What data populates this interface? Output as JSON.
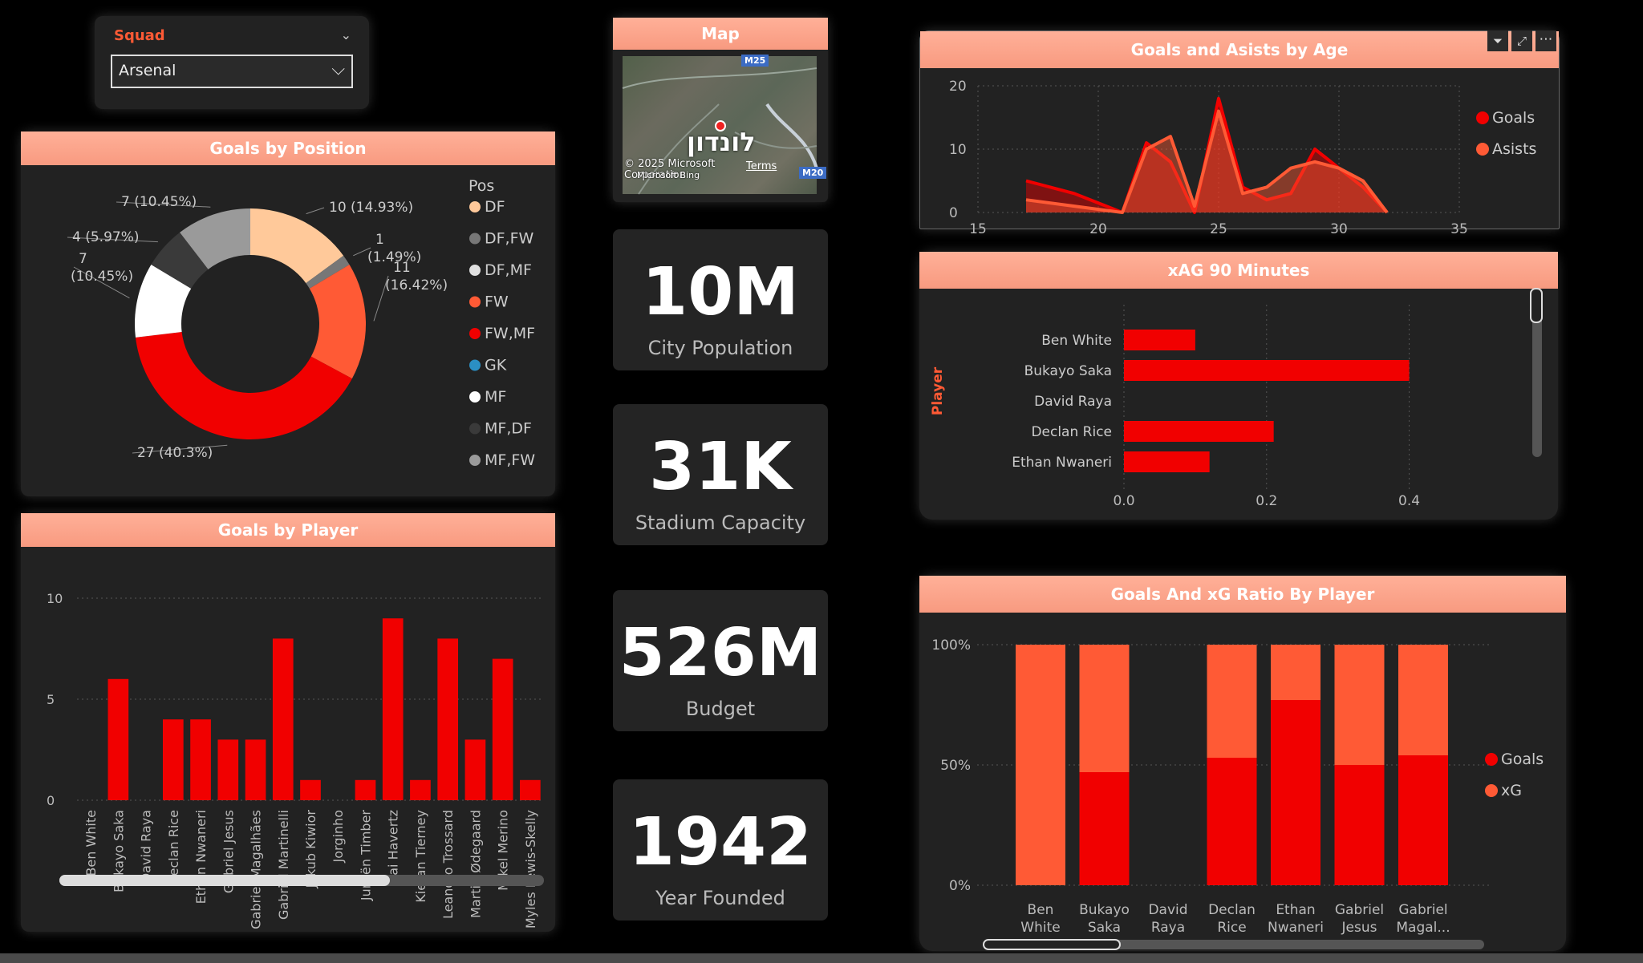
{
  "slicer": {
    "title": "Squad",
    "selected": "Arsenal"
  },
  "map": {
    "title": "Map",
    "city_label": "לונדון",
    "road_top": "M25",
    "road_right": "M20",
    "copyright": "© 2025 Microsoft Corporation",
    "bing": "Microsoft Bing",
    "terms": "Terms"
  },
  "kpis": [
    {
      "value": "10M",
      "label": "City Population"
    },
    {
      "value": "31K",
      "label": "Stadium Capacity"
    },
    {
      "value": "526M",
      "label": "Budget"
    },
    {
      "value": "1942",
      "label": "Year Founded"
    }
  ],
  "chart_data": [
    {
      "id": "goals-by-position",
      "type": "pie",
      "title": "Goals by Position",
      "legend_title": "Pos",
      "legend": [
        "DF",
        "DF,FW",
        "DF,MF",
        "FW",
        "FW,MF",
        "GK",
        "MF",
        "MF,DF",
        "MF,FW"
      ],
      "legend_colors": [
        "#ffc99a",
        "#777777",
        "#e0e0e0",
        "#ff5a35",
        "#f10000",
        "#2b8fc4",
        "#ffffff",
        "#3a3a3a",
        "#9a9a9a"
      ],
      "slices": [
        {
          "category": "DF",
          "value": 10,
          "label": "10 (14.93%)",
          "color": "#ffc99a"
        },
        {
          "category": "DF,FW",
          "value": 1,
          "label": "1 (1.49%)",
          "color": "#777777"
        },
        {
          "category": "FW",
          "value": 11,
          "label": "11 (16.42%)",
          "color": "#ff5a35"
        },
        {
          "category": "FW,MF",
          "value": 27,
          "label": "27 (40.3%)",
          "color": "#f10000"
        },
        {
          "category": "MF",
          "value": 7,
          "label": "7 (10.45%)",
          "color": "#ffffff"
        },
        {
          "category": "MF,DF",
          "value": 4,
          "label": "4 (5.97%)",
          "color": "#3a3a3a"
        },
        {
          "category": "MF,FW",
          "value": 7,
          "label": "7 (10.45%)",
          "color": "#9a9a9a"
        }
      ]
    },
    {
      "id": "goals-by-player",
      "type": "bar",
      "title": "Goals by Player",
      "categories": [
        "Ben White",
        "Bukayo Saka",
        "David Raya",
        "Declan Rice",
        "Ethan Nwaneri",
        "Gabriel Jesus",
        "Gabriel Magalhães",
        "Gabriel Martinelli",
        "Jakub Kiwior",
        "Jorginho",
        "Jurriën Timber",
        "Kai Havertz",
        "Kieran Tierney",
        "Leandro Trossard",
        "Martin Ødegaard",
        "Mikel Merino",
        "Myles Lewis-Skelly"
      ],
      "values": [
        0,
        6,
        0,
        4,
        4,
        3,
        3,
        8,
        1,
        0,
        1,
        9,
        1,
        8,
        3,
        7,
        1
      ],
      "ylim": [
        0,
        10
      ],
      "yticks": [
        0,
        5,
        10
      ],
      "color": "#f10000"
    },
    {
      "id": "goals-assists-by-age",
      "type": "area",
      "title": "Goals and Asists by Age",
      "xlim": [
        15,
        35
      ],
      "xticks": [
        15,
        20,
        25,
        30,
        35
      ],
      "ylim": [
        0,
        20
      ],
      "yticks": [
        0,
        10,
        20
      ],
      "series": [
        {
          "name": "Goals",
          "color": "#f10000",
          "points": [
            [
              17,
              5
            ],
            [
              19,
              3
            ],
            [
              21,
              0
            ],
            [
              22,
              11
            ],
            [
              23,
              8
            ],
            [
              24,
              0
            ],
            [
              25,
              18
            ],
            [
              26,
              4
            ],
            [
              27,
              2
            ],
            [
              28,
              3
            ],
            [
              29,
              10
            ],
            [
              30,
              7
            ],
            [
              31,
              4
            ],
            [
              32,
              0
            ]
          ]
        },
        {
          "name": "Asists",
          "color": "#ff5a35",
          "points": [
            [
              17,
              2
            ],
            [
              19,
              1
            ],
            [
              21,
              0
            ],
            [
              22,
              10
            ],
            [
              23,
              12
            ],
            [
              24,
              1
            ],
            [
              25,
              16
            ],
            [
              26,
              3
            ],
            [
              27,
              4
            ],
            [
              28,
              7
            ],
            [
              29,
              8
            ],
            [
              30,
              7
            ],
            [
              31,
              5
            ],
            [
              32,
              0
            ]
          ]
        }
      ]
    },
    {
      "id": "xag-90",
      "type": "bar",
      "orientation": "horizontal",
      "title": "xAG 90 Minutes",
      "ylabel": "Player",
      "categories": [
        "Ben White",
        "Bukayo Saka",
        "David Raya",
        "Declan Rice",
        "Ethan Nwaneri"
      ],
      "values": [
        0.1,
        0.4,
        0.0,
        0.21,
        0.12
      ],
      "xlim": [
        0,
        0.45
      ],
      "xticks": [
        "0.0",
        "0.2",
        "0.4"
      ],
      "color": "#f10000"
    },
    {
      "id": "goals-xg-ratio",
      "type": "bar",
      "stacked": "percent",
      "title": "Goals And xG Ratio By Player",
      "categories": [
        "Ben White",
        "Bukayo Saka",
        "David Raya",
        "Declan Rice",
        "Ethan Nwaneri",
        "Gabriel Jesus",
        "Gabriel Magal..."
      ],
      "yticks": [
        "0%",
        "50%",
        "100%"
      ],
      "series": [
        {
          "name": "Goals",
          "color": "#f10000",
          "values": [
            0,
            47,
            0,
            53,
            77,
            50,
            54
          ]
        },
        {
          "name": "xG",
          "color": "#ff5a35",
          "values": [
            100,
            53,
            0,
            47,
            23,
            50,
            46
          ]
        }
      ]
    }
  ]
}
